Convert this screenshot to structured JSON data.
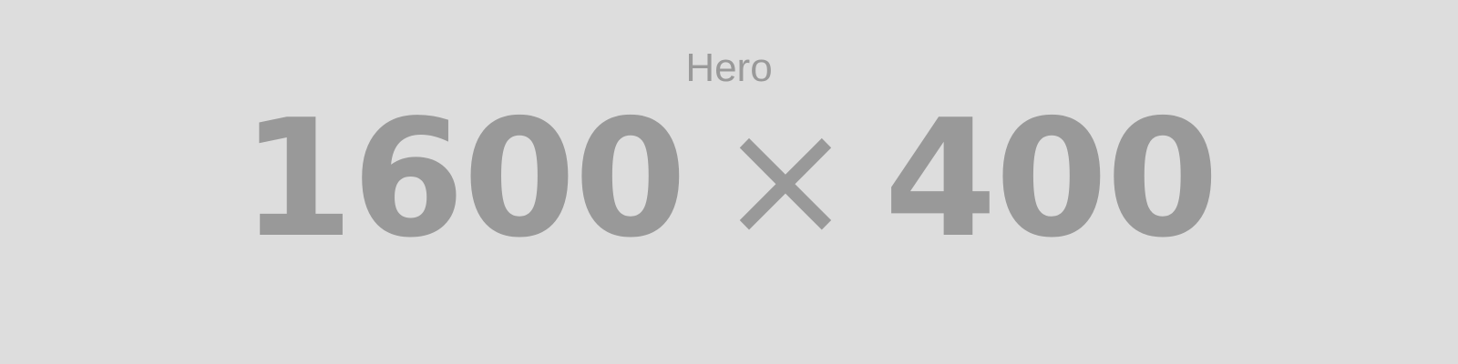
{
  "placeholder": {
    "label": "Hero",
    "width": "1600",
    "separator": "×",
    "height": "400",
    "background_color": "#dddddd",
    "text_color": "#999999"
  }
}
